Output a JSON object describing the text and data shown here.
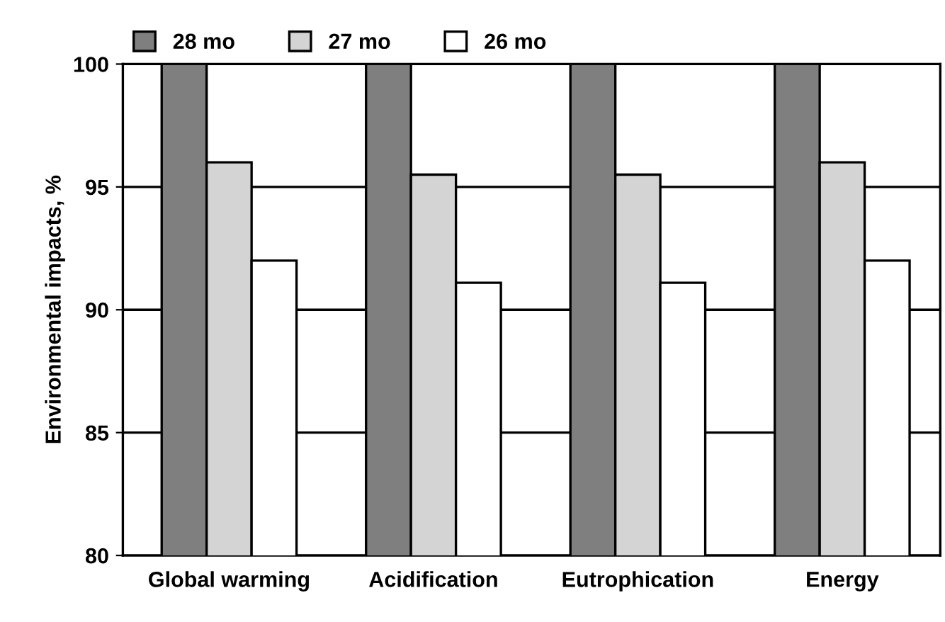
{
  "chart_data": {
    "type": "bar",
    "ylabel": "Environmental impacts, %",
    "categories": [
      "Global warming",
      "Acidification",
      "Eutrophication",
      "Energy"
    ],
    "series": [
      {
        "name": "28 mo",
        "color": "#7f7f7f",
        "values": [
          100,
          100,
          100,
          100
        ]
      },
      {
        "name": "27 mo",
        "color": "#d4d4d4",
        "values": [
          96,
          95.5,
          95.5,
          96
        ]
      },
      {
        "name": "26 mo",
        "color": "#ffffff",
        "values": [
          92,
          91.1,
          91.1,
          92
        ]
      }
    ],
    "ylim": [
      80,
      100
    ],
    "yticks": [
      80,
      85,
      90,
      95,
      100
    ],
    "grid": "y",
    "legend": "top"
  }
}
